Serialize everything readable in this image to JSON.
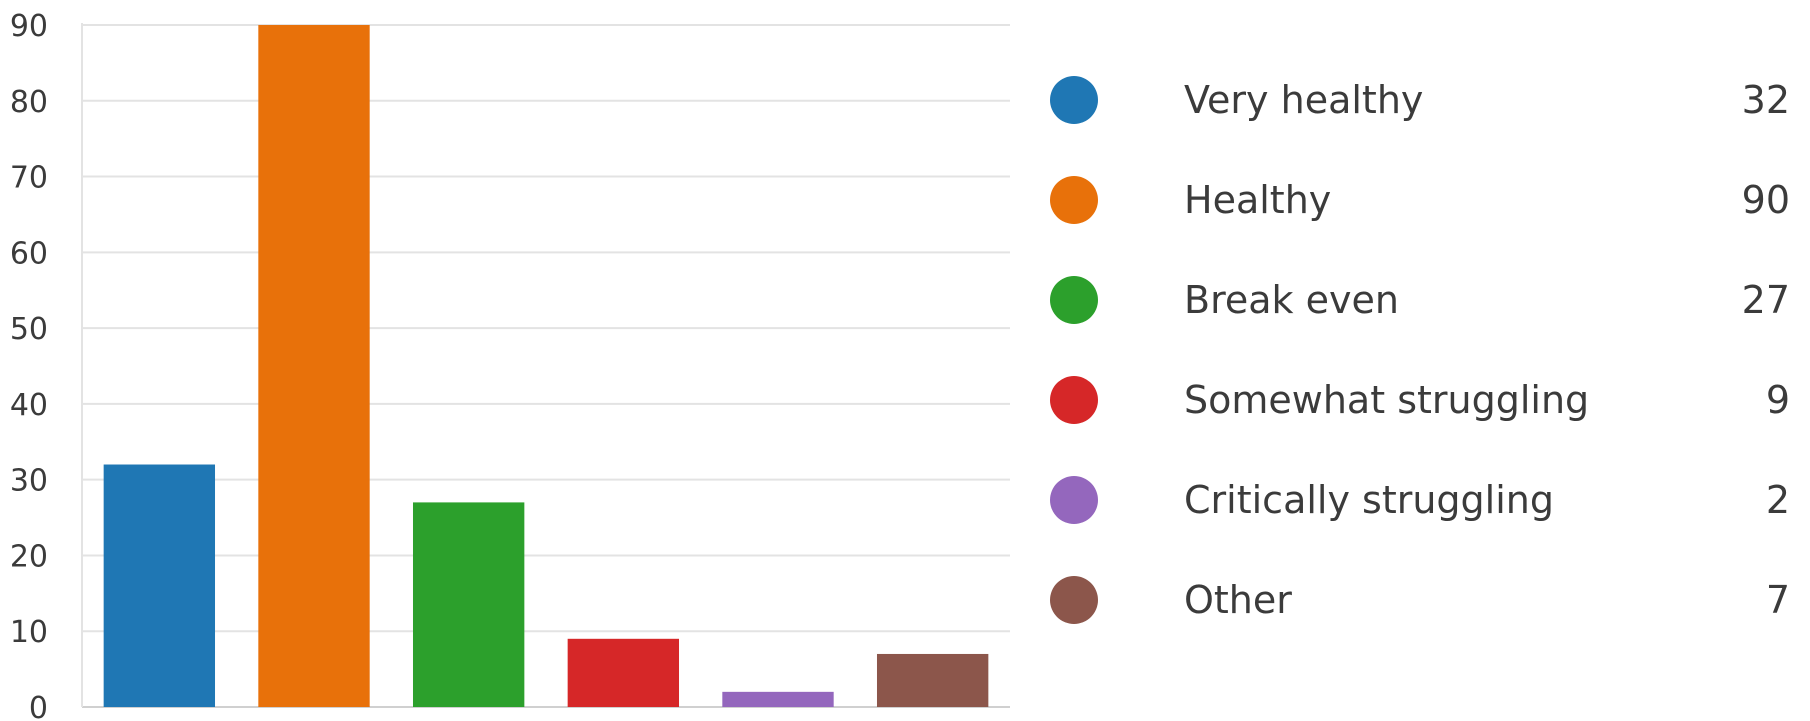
{
  "chart_data": {
    "type": "bar",
    "categories": [
      "Very healthy",
      "Healthy",
      "Break even",
      "Somewhat struggling",
      "Critically struggling",
      "Other"
    ],
    "values": [
      32,
      90,
      27,
      9,
      2,
      7
    ],
    "colors": [
      "#1f77b4",
      "#e8710a",
      "#2ca02c",
      "#d62728",
      "#9467bd",
      "#8c564b"
    ],
    "ylim": [
      0,
      90
    ],
    "yticks": [
      0,
      10,
      20,
      30,
      40,
      50,
      60,
      70,
      80,
      90
    ],
    "grid": true,
    "legend_position": "right",
    "title": "",
    "xlabel": "",
    "ylabel": ""
  },
  "legend": {
    "items": [
      {
        "label": "Very healthy",
        "value": "32",
        "color": "#1f77b4"
      },
      {
        "label": "Healthy",
        "value": "90",
        "color": "#e8710a"
      },
      {
        "label": "Break even",
        "value": "27",
        "color": "#2ca02c"
      },
      {
        "label": "Somewhat struggling",
        "value": "9",
        "color": "#d62728"
      },
      {
        "label": "Critically struggling",
        "value": "2",
        "color": "#9467bd"
      },
      {
        "label": "Other",
        "value": "7",
        "color": "#8c564b"
      }
    ]
  }
}
